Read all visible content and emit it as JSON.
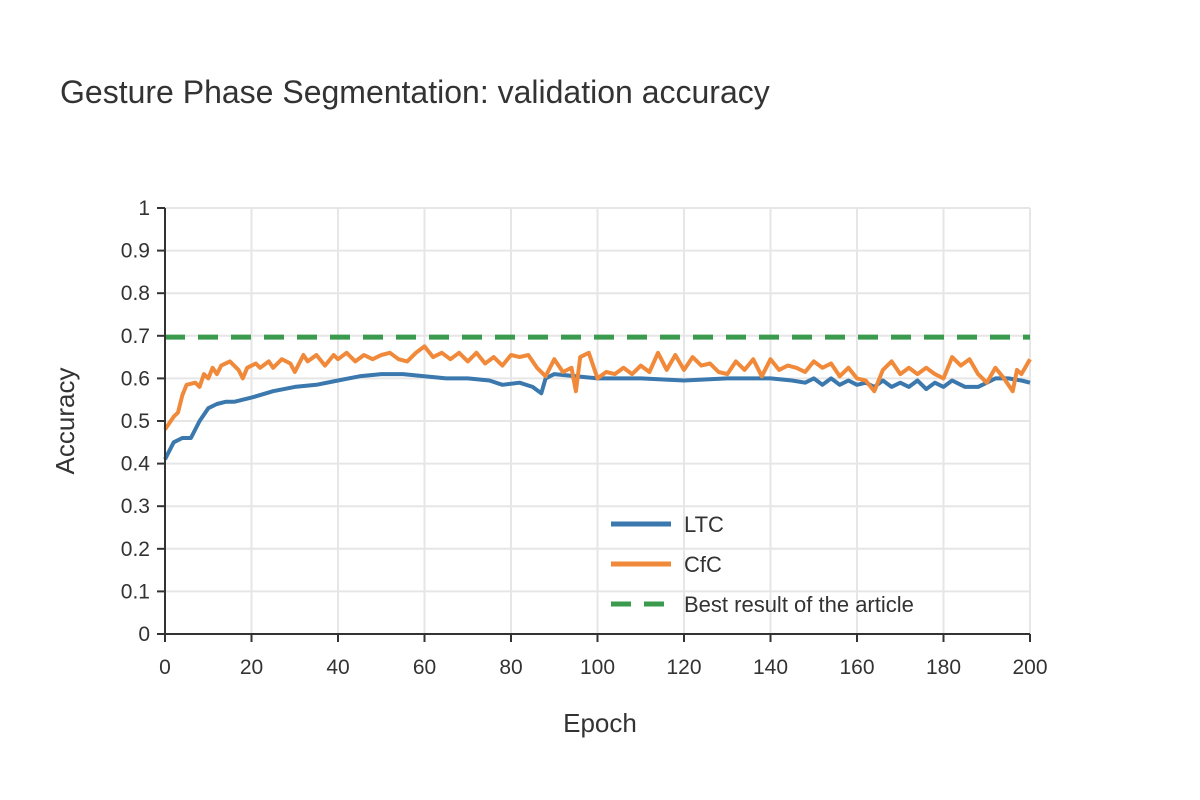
{
  "chart_data": {
    "type": "line",
    "title": "Gesture Phase Segmentation: validation accuracy",
    "xlabel": "Epoch",
    "ylabel": "Accuracy",
    "xlim": [
      0,
      200
    ],
    "ylim": [
      0,
      1
    ],
    "x_ticks": [
      "0",
      "20",
      "40",
      "60",
      "80",
      "100",
      "120",
      "140",
      "160",
      "180",
      "200"
    ],
    "y_ticks": [
      "0",
      "0.1",
      "0.2",
      "0.3",
      "0.4",
      "0.5",
      "0.6",
      "0.7",
      "0.8",
      "0.9",
      "1"
    ],
    "grid": true,
    "legend_position": "bottom-right",
    "series": [
      {
        "name": "LTC",
        "color": "#3a78ad",
        "style": "solid",
        "points": [
          [
            0,
            0.41
          ],
          [
            2,
            0.45
          ],
          [
            4,
            0.46
          ],
          [
            6,
            0.46
          ],
          [
            8,
            0.5
          ],
          [
            10,
            0.53
          ],
          [
            12,
            0.54
          ],
          [
            14,
            0.545
          ],
          [
            16,
            0.545
          ],
          [
            18,
            0.55
          ],
          [
            20,
            0.555
          ],
          [
            25,
            0.57
          ],
          [
            30,
            0.58
          ],
          [
            35,
            0.585
          ],
          [
            40,
            0.595
          ],
          [
            45,
            0.605
          ],
          [
            50,
            0.61
          ],
          [
            55,
            0.61
          ],
          [
            60,
            0.605
          ],
          [
            65,
            0.6
          ],
          [
            70,
            0.6
          ],
          [
            75,
            0.595
          ],
          [
            78,
            0.585
          ],
          [
            82,
            0.59
          ],
          [
            85,
            0.58
          ],
          [
            87,
            0.565
          ],
          [
            88,
            0.6
          ],
          [
            90,
            0.61
          ],
          [
            95,
            0.605
          ],
          [
            100,
            0.6
          ],
          [
            110,
            0.6
          ],
          [
            120,
            0.595
          ],
          [
            130,
            0.6
          ],
          [
            140,
            0.6
          ],
          [
            145,
            0.595
          ],
          [
            148,
            0.59
          ],
          [
            150,
            0.6
          ],
          [
            152,
            0.585
          ],
          [
            154,
            0.6
          ],
          [
            156,
            0.585
          ],
          [
            158,
            0.595
          ],
          [
            160,
            0.585
          ],
          [
            162,
            0.59
          ],
          [
            164,
            0.58
          ],
          [
            166,
            0.595
          ],
          [
            168,
            0.58
          ],
          [
            170,
            0.59
          ],
          [
            172,
            0.58
          ],
          [
            174,
            0.595
          ],
          [
            176,
            0.575
          ],
          [
            178,
            0.59
          ],
          [
            180,
            0.58
          ],
          [
            182,
            0.595
          ],
          [
            185,
            0.58
          ],
          [
            188,
            0.58
          ],
          [
            190,
            0.59
          ],
          [
            192,
            0.6
          ],
          [
            195,
            0.6
          ],
          [
            198,
            0.595
          ],
          [
            200,
            0.59
          ]
        ]
      },
      {
        "name": "CfC",
        "color": "#f08a3a",
        "style": "solid",
        "points": [
          [
            0,
            0.48
          ],
          [
            2,
            0.51
          ],
          [
            3,
            0.52
          ],
          [
            4,
            0.56
          ],
          [
            5,
            0.585
          ],
          [
            7,
            0.59
          ],
          [
            8,
            0.58
          ],
          [
            9,
            0.61
          ],
          [
            10,
            0.6
          ],
          [
            11,
            0.625
          ],
          [
            12,
            0.61
          ],
          [
            13,
            0.63
          ],
          [
            15,
            0.64
          ],
          [
            17,
            0.62
          ],
          [
            18,
            0.6
          ],
          [
            19,
            0.625
          ],
          [
            21,
            0.635
          ],
          [
            22,
            0.625
          ],
          [
            24,
            0.64
          ],
          [
            25,
            0.625
          ],
          [
            27,
            0.645
          ],
          [
            29,
            0.635
          ],
          [
            30,
            0.615
          ],
          [
            32,
            0.655
          ],
          [
            33,
            0.64
          ],
          [
            35,
            0.655
          ],
          [
            37,
            0.63
          ],
          [
            39,
            0.655
          ],
          [
            40,
            0.645
          ],
          [
            42,
            0.66
          ],
          [
            44,
            0.64
          ],
          [
            46,
            0.655
          ],
          [
            48,
            0.645
          ],
          [
            50,
            0.655
          ],
          [
            52,
            0.66
          ],
          [
            54,
            0.645
          ],
          [
            56,
            0.64
          ],
          [
            58,
            0.66
          ],
          [
            60,
            0.675
          ],
          [
            62,
            0.65
          ],
          [
            64,
            0.66
          ],
          [
            66,
            0.645
          ],
          [
            68,
            0.66
          ],
          [
            70,
            0.64
          ],
          [
            72,
            0.66
          ],
          [
            74,
            0.635
          ],
          [
            76,
            0.65
          ],
          [
            78,
            0.63
          ],
          [
            80,
            0.655
          ],
          [
            82,
            0.65
          ],
          [
            84,
            0.655
          ],
          [
            86,
            0.625
          ],
          [
            88,
            0.605
          ],
          [
            90,
            0.645
          ],
          [
            92,
            0.615
          ],
          [
            94,
            0.625
          ],
          [
            95,
            0.57
          ],
          [
            96,
            0.65
          ],
          [
            98,
            0.66
          ],
          [
            100,
            0.6
          ],
          [
            102,
            0.615
          ],
          [
            104,
            0.61
          ],
          [
            106,
            0.625
          ],
          [
            108,
            0.61
          ],
          [
            110,
            0.63
          ],
          [
            112,
            0.615
          ],
          [
            114,
            0.66
          ],
          [
            116,
            0.62
          ],
          [
            118,
            0.655
          ],
          [
            120,
            0.62
          ],
          [
            122,
            0.65
          ],
          [
            124,
            0.63
          ],
          [
            126,
            0.635
          ],
          [
            128,
            0.615
          ],
          [
            130,
            0.61
          ],
          [
            132,
            0.64
          ],
          [
            134,
            0.62
          ],
          [
            136,
            0.645
          ],
          [
            138,
            0.605
          ],
          [
            140,
            0.645
          ],
          [
            142,
            0.62
          ],
          [
            144,
            0.63
          ],
          [
            146,
            0.625
          ],
          [
            148,
            0.615
          ],
          [
            150,
            0.64
          ],
          [
            152,
            0.625
          ],
          [
            154,
            0.635
          ],
          [
            156,
            0.605
          ],
          [
            158,
            0.625
          ],
          [
            160,
            0.6
          ],
          [
            162,
            0.595
          ],
          [
            164,
            0.57
          ],
          [
            166,
            0.62
          ],
          [
            168,
            0.64
          ],
          [
            170,
            0.61
          ],
          [
            172,
            0.625
          ],
          [
            174,
            0.61
          ],
          [
            176,
            0.625
          ],
          [
            178,
            0.61
          ],
          [
            180,
            0.6
          ],
          [
            182,
            0.65
          ],
          [
            184,
            0.63
          ],
          [
            186,
            0.645
          ],
          [
            188,
            0.61
          ],
          [
            190,
            0.59
          ],
          [
            192,
            0.625
          ],
          [
            194,
            0.6
          ],
          [
            196,
            0.57
          ],
          [
            197,
            0.62
          ],
          [
            198,
            0.61
          ],
          [
            200,
            0.645
          ]
        ]
      },
      {
        "name": "Best result of the article",
        "color": "#3a9a4e",
        "style": "dashed",
        "points": [
          [
            0,
            0.697
          ],
          [
            200,
            0.697
          ]
        ]
      }
    ]
  }
}
